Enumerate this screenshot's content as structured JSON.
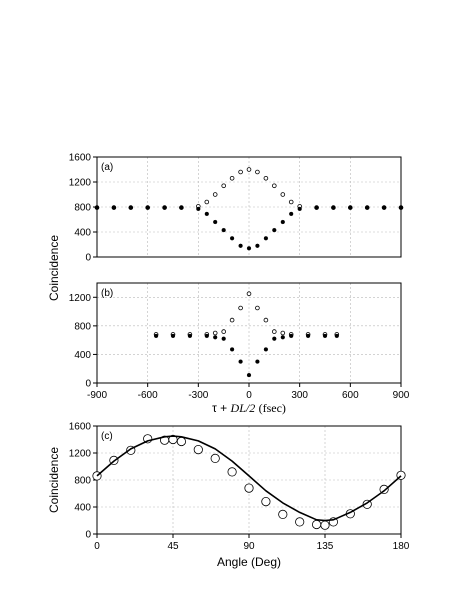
{
  "ylabel_top": "Coincidence",
  "ylabel_bottom": "Coincidence",
  "xlabel_top_tau": "τ +",
  "xlabel_top_rest": "DL/2",
  "xlabel_top_units": "(fsec)",
  "chart_data": [
    {
      "type": "scatter",
      "panel_label": "(a)",
      "xlim": [
        -900,
        900
      ],
      "ylim": [
        0,
        1600
      ],
      "yticks": [
        0,
        400,
        800,
        1200,
        1600
      ],
      "ytick_labels": [
        "0",
        "400",
        "800",
        "1200",
        "1600"
      ],
      "grid": true,
      "series": [
        {
          "marker": "open-circle",
          "x": [
            -900,
            -800,
            -700,
            -600,
            -500,
            -400,
            -300,
            -250,
            -200,
            -150,
            -100,
            -50,
            0,
            50,
            100,
            150,
            200,
            250,
            300,
            400,
            500,
            600,
            700,
            800,
            900
          ],
          "y": [
            790,
            790,
            790,
            790,
            790,
            790,
            810,
            880,
            1000,
            1140,
            1260,
            1360,
            1400,
            1360,
            1260,
            1140,
            1000,
            880,
            810,
            790,
            790,
            790,
            790,
            790,
            790
          ]
        },
        {
          "marker": "filled-circle",
          "x": [
            -900,
            -800,
            -700,
            -600,
            -500,
            -400,
            -300,
            -250,
            -200,
            -150,
            -100,
            -50,
            0,
            50,
            100,
            150,
            200,
            250,
            300,
            400,
            500,
            600,
            700,
            800,
            900
          ],
          "y": [
            790,
            790,
            790,
            790,
            790,
            790,
            770,
            690,
            560,
            430,
            300,
            180,
            140,
            180,
            300,
            430,
            560,
            690,
            770,
            790,
            790,
            790,
            790,
            790,
            790
          ]
        }
      ]
    },
    {
      "type": "scatter",
      "panel_label": "(b)",
      "xlim": [
        -900,
        900
      ],
      "ylim": [
        0,
        1400
      ],
      "xticks": [
        -900,
        -600,
        -300,
        0,
        300,
        600,
        900
      ],
      "xtick_labels": [
        "-900",
        "-600",
        "-300",
        "0",
        "300",
        "600",
        "900"
      ],
      "yticks": [
        0,
        400,
        800,
        1200
      ],
      "ytick_labels": [
        "0",
        "400",
        "800",
        "1200"
      ],
      "grid": true,
      "series": [
        {
          "marker": "open-circle",
          "x": [
            -550,
            -450,
            -350,
            -250,
            -200,
            -150,
            -100,
            -50,
            0,
            50,
            100,
            150,
            200,
            250,
            350,
            450,
            520
          ],
          "y": [
            680,
            680,
            680,
            680,
            700,
            720,
            880,
            1050,
            1250,
            1050,
            880,
            720,
            700,
            680,
            680,
            680,
            680
          ]
        },
        {
          "marker": "filled-circle",
          "x": [
            -550,
            -450,
            -350,
            -250,
            -200,
            -150,
            -100,
            -50,
            0,
            50,
            100,
            150,
            200,
            250,
            350,
            450,
            520
          ],
          "y": [
            660,
            660,
            660,
            660,
            640,
            620,
            470,
            300,
            110,
            300,
            470,
            620,
            640,
            660,
            660,
            660,
            660
          ]
        }
      ]
    },
    {
      "type": "scatter",
      "panel_label": "(c)",
      "xlabel": "Angle (Deg)",
      "xlim": [
        0,
        180
      ],
      "ylim": [
        0,
        1600
      ],
      "xticks": [
        0,
        45,
        90,
        135,
        180
      ],
      "xtick_labels": [
        "0",
        "45",
        "90",
        "135",
        "180"
      ],
      "yticks": [
        0,
        400,
        800,
        1200,
        1600
      ],
      "ytick_labels": [
        "0",
        "400",
        "800",
        "1200",
        "1600"
      ],
      "grid": true,
      "series": [
        {
          "marker": "open-circle",
          "x": [
            0,
            10,
            20,
            30,
            40,
            45,
            50,
            60,
            70,
            80,
            90,
            100,
            110,
            120,
            130,
            135,
            140,
            150,
            160,
            170,
            180
          ],
          "y": [
            860,
            1090,
            1240,
            1410,
            1390,
            1400,
            1370,
            1250,
            1120,
            920,
            680,
            480,
            290,
            180,
            140,
            130,
            180,
            300,
            440,
            660,
            870
          ]
        },
        {
          "marker": "line",
          "x": [
            0,
            10,
            20,
            30,
            40,
            45,
            50,
            60,
            70,
            80,
            90,
            100,
            110,
            120,
            130,
            135,
            140,
            150,
            160,
            170,
            180
          ],
          "y": [
            860,
            1080,
            1260,
            1380,
            1440,
            1450,
            1440,
            1380,
            1260,
            1080,
            860,
            640,
            460,
            320,
            210,
            200,
            210,
            320,
            460,
            640,
            860
          ]
        }
      ]
    }
  ]
}
